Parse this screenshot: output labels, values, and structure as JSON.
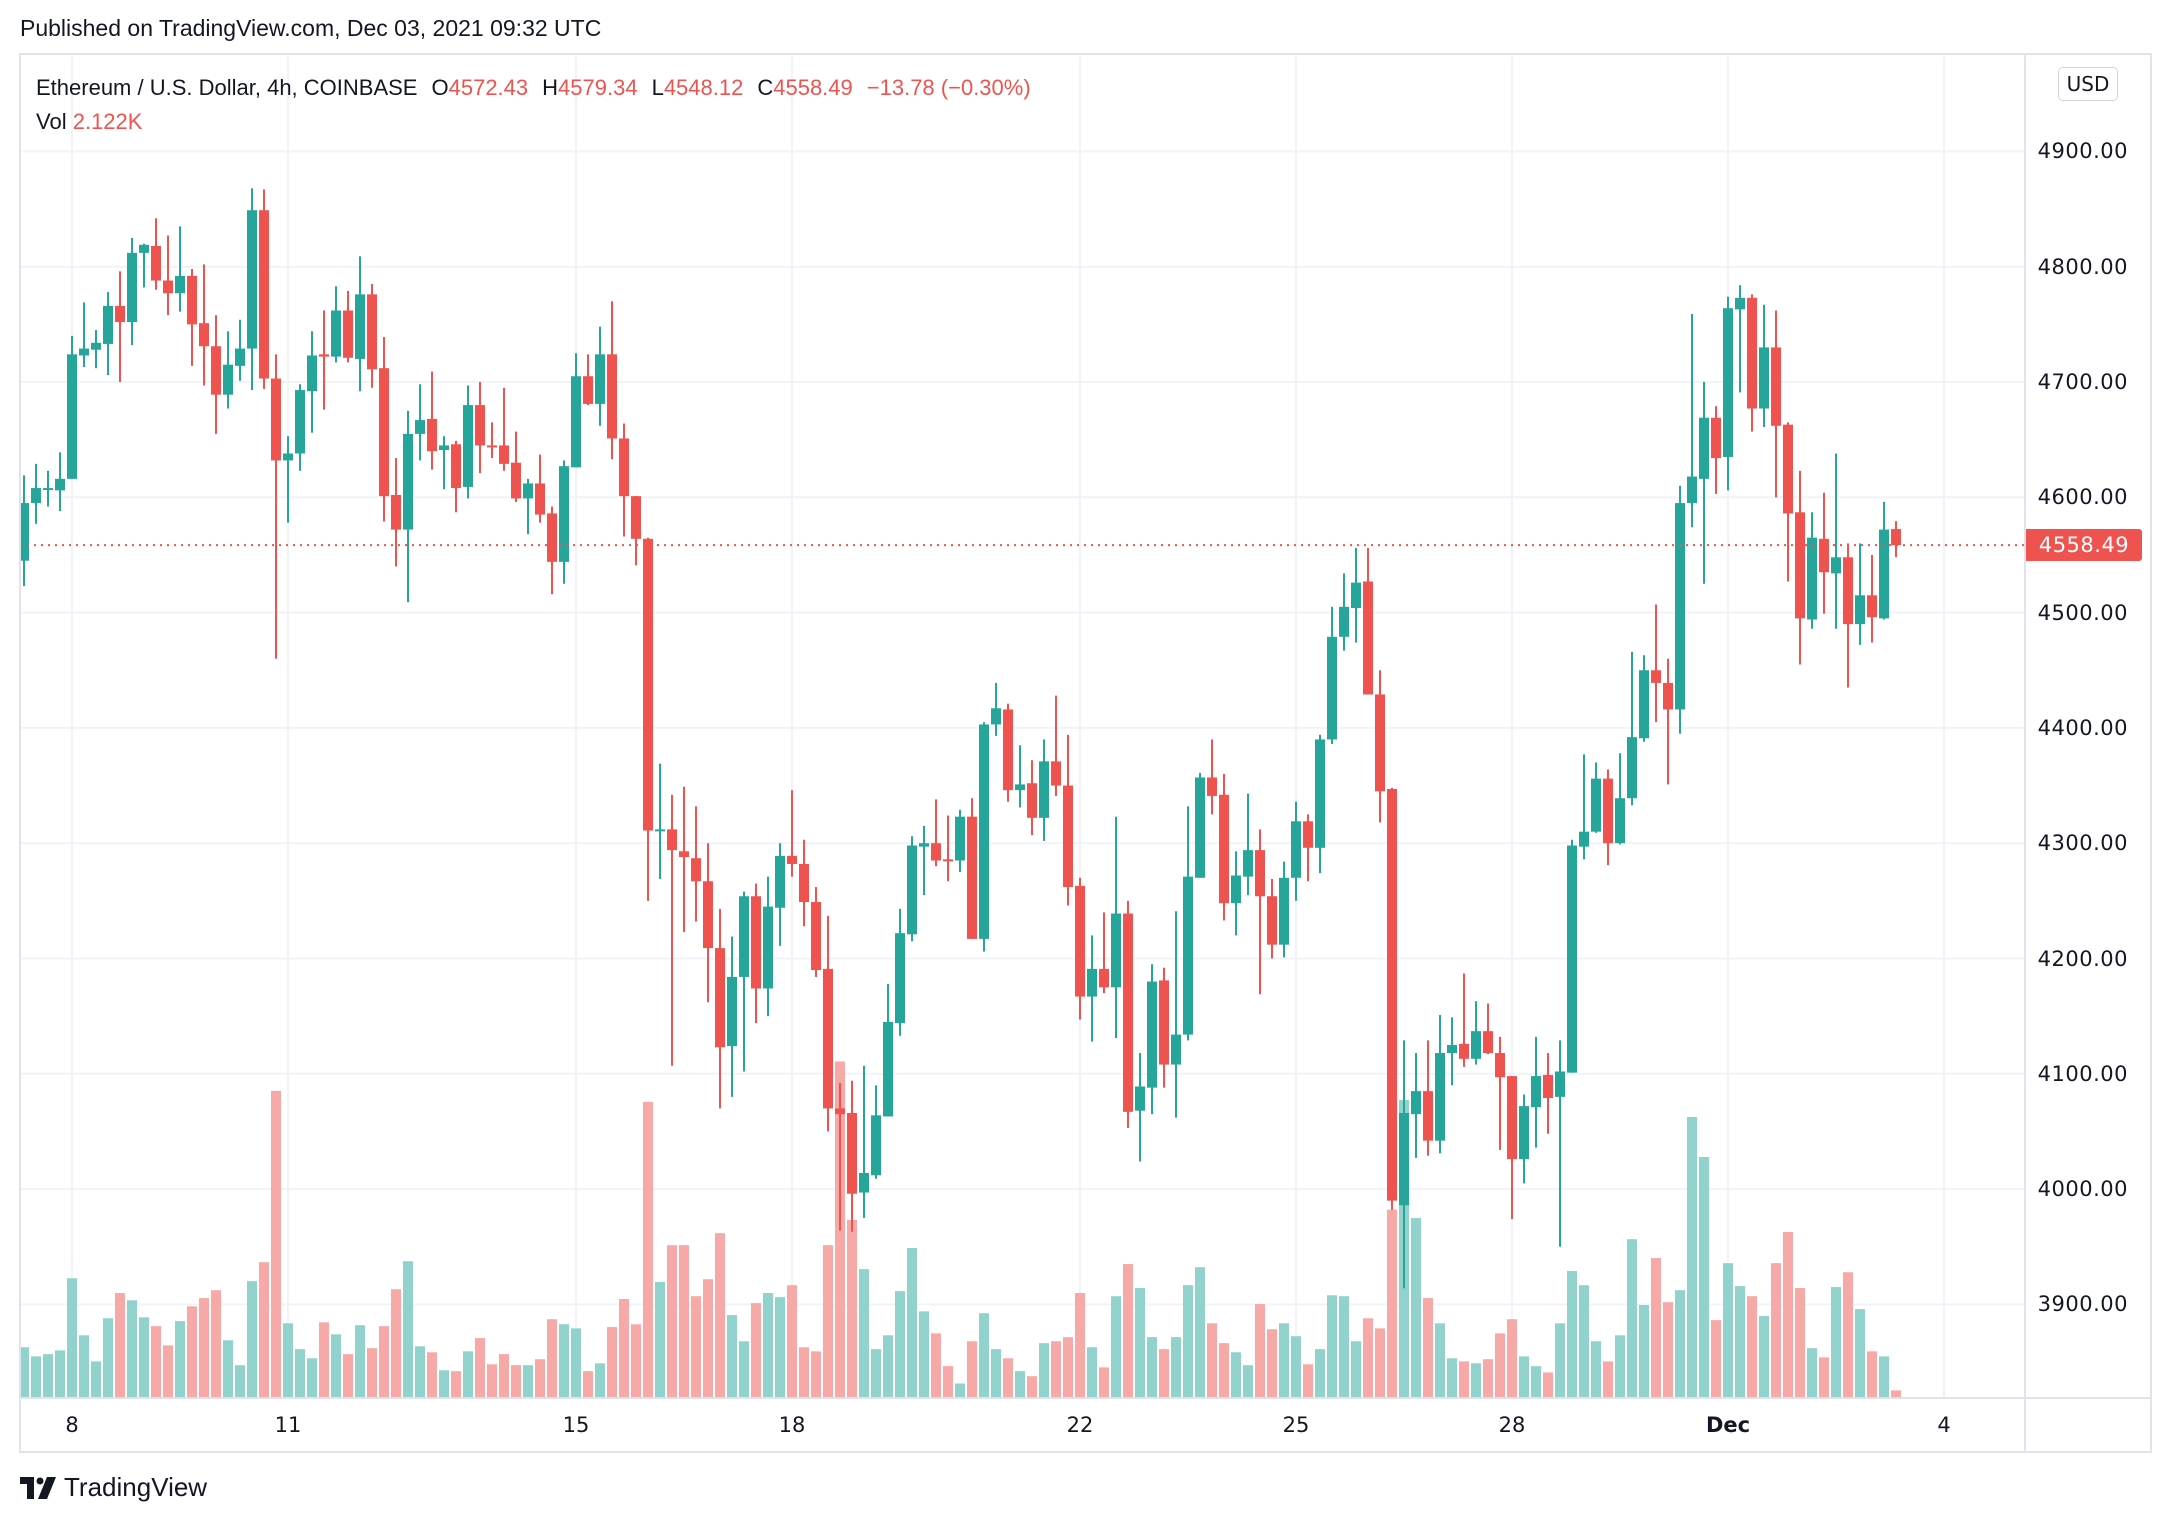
{
  "published": "Published on TradingView.com, Dec 03, 2021 09:32 UTC",
  "legend": {
    "symbol": "Ethereum / U.S. Dollar, 4h, COINBASE",
    "o_label": "O",
    "open": "4572.43",
    "h_label": "H",
    "high": "4579.34",
    "l_label": "L",
    "low": "4548.12",
    "c_label": "C",
    "close": "4558.49",
    "change": "−13.78 (−0.30%)",
    "vol_label": "Vol",
    "vol": "2.122K"
  },
  "currency_button": "USD",
  "last_price_label": "4558.49",
  "logo_text": "TradingView",
  "colors": {
    "up": "#26a69a",
    "down": "#ef5350",
    "up_volume": "#92d2cc",
    "down_volume": "#f7a9a7",
    "grid": "#f0f3fa"
  },
  "chart_data": {
    "type": "candlestick",
    "title": "Ethereum / U.S. Dollar, 4h, COINBASE",
    "interval": "4h",
    "ylim": [
      3820,
      4960
    ],
    "grid": true,
    "y_ticks": [
      "4900.00",
      "4800.00",
      "4700.00",
      "4600.00",
      "4500.00",
      "4400.00",
      "4300.00",
      "4200.00",
      "4100.00",
      "4000.00",
      "3900.00"
    ],
    "x_ticks": [
      {
        "label": "8",
        "t": "2021-11-08 00:00"
      },
      {
        "label": "11",
        "t": "2021-11-11 00:00"
      },
      {
        "label": "15",
        "t": "2021-11-15 00:00"
      },
      {
        "label": "18",
        "t": "2021-11-18 00:00"
      },
      {
        "label": "22",
        "t": "2021-11-22 00:00"
      },
      {
        "label": "25",
        "t": "2021-11-25 00:00"
      },
      {
        "label": "28",
        "t": "2021-11-28 00:00"
      },
      {
        "label": "Dec",
        "t": "2021-12-01 00:00"
      },
      {
        "label": "4",
        "t": "2021-12-04 00:00"
      }
    ],
    "last_price": 4558.49,
    "columns": [
      "time",
      "open",
      "high",
      "low",
      "close",
      "volume_k"
    ],
    "candles": [
      [
        "2021-11-07 08:00",
        4545,
        4619,
        4523,
        4595,
        15.8
      ],
      [
        "2021-11-07 12:00",
        4595,
        4629,
        4577,
        4608,
        12.9
      ],
      [
        "2021-11-07 16:00",
        4607,
        4623,
        4592,
        4608,
        13.6
      ],
      [
        "2021-11-07 20:00",
        4606,
        4639,
        4588,
        4616,
        14.8
      ],
      [
        "2021-11-08 00:00",
        4616,
        4740,
        4616,
        4724,
        37.7
      ],
      [
        "2021-11-08 04:00",
        4723,
        4769,
        4713,
        4729,
        19.6
      ],
      [
        "2021-11-08 08:00",
        4728,
        4745,
        4712,
        4734,
        11.3
      ],
      [
        "2021-11-08 12:00",
        4733,
        4778,
        4706,
        4766,
        25.0
      ],
      [
        "2021-11-08 16:00",
        4766,
        4796,
        4700,
        4752,
        33.0
      ],
      [
        "2021-11-08 20:00",
        4752,
        4825,
        4732,
        4812,
        30.7
      ],
      [
        "2021-11-09 00:00",
        4812,
        4820,
        4782,
        4819,
        25.3
      ],
      [
        "2021-11-09 04:00",
        4818,
        4842,
        4780,
        4788,
        22.5
      ],
      [
        "2021-11-09 08:00",
        4788,
        4827,
        4758,
        4777,
        16.4
      ],
      [
        "2021-11-09 12:00",
        4777,
        4835,
        4761,
        4792,
        24.1
      ],
      [
        "2021-11-09 16:00",
        4792,
        4798,
        4714,
        4750,
        28.8
      ],
      [
        "2021-11-09 20:00",
        4751,
        4802,
        4697,
        4731,
        31.4
      ],
      [
        "2021-11-10 00:00",
        4731,
        4758,
        4655,
        4689,
        33.9
      ],
      [
        "2021-11-10 04:00",
        4689,
        4744,
        4677,
        4715,
        18.0
      ],
      [
        "2021-11-10 08:00",
        4714,
        4754,
        4701,
        4729,
        10.1
      ],
      [
        "2021-11-10 12:00",
        4729,
        4868,
        4693,
        4849,
        36.8
      ],
      [
        "2021-11-10 16:00",
        4849,
        4867,
        4694,
        4703,
        42.8
      ],
      [
        "2021-11-10 20:00",
        4703,
        4724,
        4460,
        4632,
        97.2
      ],
      [
        "2021-11-11 00:00",
        4632,
        4653,
        4578,
        4638,
        23.4
      ],
      [
        "2021-11-11 04:00",
        4638,
        4698,
        4623,
        4693,
        15.2
      ],
      [
        "2021-11-11 08:00",
        4692,
        4744,
        4656,
        4723,
        12.3
      ],
      [
        "2021-11-11 12:00",
        4724,
        4762,
        4676,
        4722,
        23.7
      ],
      [
        "2021-11-11 16:00",
        4722,
        4783,
        4717,
        4762,
        19.9
      ],
      [
        "2021-11-11 20:00",
        4762,
        4779,
        4717,
        4721,
        13.6
      ],
      [
        "2021-11-12 00:00",
        4720,
        4809,
        4692,
        4776,
        22.8
      ],
      [
        "2021-11-12 04:00",
        4776,
        4785,
        4695,
        4711,
        15.5
      ],
      [
        "2021-11-12 08:00",
        4712,
        4739,
        4579,
        4601,
        22.5
      ],
      [
        "2021-11-12 12:00",
        4602,
        4634,
        4540,
        4572,
        34.2
      ],
      [
        "2021-11-12 16:00",
        4572,
        4675,
        4509,
        4655,
        43.1
      ],
      [
        "2021-11-12 20:00",
        4655,
        4698,
        4632,
        4667,
        16.1
      ],
      [
        "2021-11-13 00:00",
        4668,
        4709,
        4624,
        4640,
        14.2
      ],
      [
        "2021-11-13 04:00",
        4641,
        4653,
        4607,
        4645,
        8.5
      ],
      [
        "2021-11-13 08:00",
        4646,
        4649,
        4587,
        4608,
        8.2
      ],
      [
        "2021-11-13 12:00",
        4609,
        4697,
        4599,
        4680,
        14.5
      ],
      [
        "2021-11-13 16:00",
        4680,
        4700,
        4621,
        4645,
        18.7
      ],
      [
        "2021-11-13 20:00",
        4645,
        4665,
        4634,
        4644,
        10.4
      ],
      [
        "2021-11-14 00:00",
        4645,
        4695,
        4623,
        4629,
        13.6
      ],
      [
        "2021-11-14 04:00",
        4630,
        4657,
        4596,
        4599,
        10.1
      ],
      [
        "2021-11-14 08:00",
        4599,
        4616,
        4568,
        4612,
        10.1
      ],
      [
        "2021-11-14 12:00",
        4612,
        4637,
        4578,
        4585,
        12.0
      ],
      [
        "2021-11-14 16:00",
        4586,
        4592,
        4516,
        4544,
        24.7
      ],
      [
        "2021-11-14 20:00",
        4544,
        4632,
        4525,
        4627,
        23.1
      ],
      [
        "2021-11-15 00:00",
        4626,
        4725,
        4626,
        4705,
        21.8
      ],
      [
        "2021-11-15 04:00",
        4705,
        4724,
        4680,
        4681,
        8.2
      ],
      [
        "2021-11-15 08:00",
        4681,
        4748,
        4662,
        4724,
        10.7
      ],
      [
        "2021-11-15 12:00",
        4724,
        4770,
        4633,
        4651,
        22.2
      ],
      [
        "2021-11-15 16:00",
        4651,
        4664,
        4566,
        4601,
        31.1
      ],
      [
        "2021-11-15 20:00",
        4601,
        4601,
        4541,
        4564,
        23.1
      ],
      [
        "2021-11-16 00:00",
        4564,
        4565,
        4250,
        4311,
        93.7
      ],
      [
        "2021-11-16 04:00",
        4311,
        4369,
        4269,
        4312,
        36.5
      ],
      [
        "2021-11-16 08:00",
        4312,
        4342,
        4107,
        4294,
        48.2
      ],
      [
        "2021-11-16 12:00",
        4293,
        4349,
        4223,
        4288,
        48.2
      ],
      [
        "2021-11-16 16:00",
        4287,
        4332,
        4232,
        4267,
        32.0
      ],
      [
        "2021-11-16 20:00",
        4267,
        4300,
        4162,
        4209,
        37.4
      ],
      [
        "2021-11-17 00:00",
        4209,
        4243,
        4070,
        4123,
        52.0
      ],
      [
        "2021-11-17 04:00",
        4124,
        4219,
        4080,
        4184,
        26.0
      ],
      [
        "2021-11-17 08:00",
        4184,
        4258,
        4102,
        4254,
        17.7
      ],
      [
        "2021-11-17 12:00",
        4254,
        4265,
        4144,
        4174,
        29.8
      ],
      [
        "2021-11-17 16:00",
        4174,
        4271,
        4150,
        4245,
        33.0
      ],
      [
        "2021-11-17 20:00",
        4244,
        4300,
        4211,
        4289,
        31.7
      ],
      [
        "2021-11-18 00:00",
        4289,
        4346,
        4271,
        4282,
        35.5
      ],
      [
        "2021-11-18 04:00",
        4282,
        4303,
        4228,
        4249,
        15.8
      ],
      [
        "2021-11-18 08:00",
        4249,
        4262,
        4184,
        4190,
        14.5
      ],
      [
        "2021-11-18 12:00",
        4191,
        4237,
        4050,
        4070,
        48.2
      ],
      [
        "2021-11-18 16:00",
        4070,
        4092,
        3964,
        4065,
        106.5
      ],
      [
        "2021-11-18 20:00",
        4066,
        4094,
        3963,
        3996,
        56.2
      ],
      [
        "2021-11-19 00:00",
        3997,
        4107,
        3975,
        4014,
        40.6
      ],
      [
        "2021-11-19 04:00",
        4012,
        4090,
        4009,
        4064,
        15.2
      ],
      [
        "2021-11-19 08:00",
        4063,
        4178,
        4063,
        4145,
        19.6
      ],
      [
        "2021-11-19 12:00",
        4144,
        4243,
        4133,
        4222,
        33.6
      ],
      [
        "2021-11-19 16:00",
        4221,
        4306,
        4215,
        4298,
        47.3
      ],
      [
        "2021-11-19 20:00",
        4297,
        4315,
        4255,
        4300,
        27.2
      ],
      [
        "2021-11-20 00:00",
        4300,
        4338,
        4280,
        4285,
        20.2
      ],
      [
        "2021-11-20 04:00",
        4286,
        4324,
        4267,
        4285,
        9.8
      ],
      [
        "2021-11-20 08:00",
        4285,
        4329,
        4275,
        4323,
        4.3
      ],
      [
        "2021-11-20 12:00",
        4323,
        4339,
        4217,
        4217,
        17.7
      ],
      [
        "2021-11-20 16:00",
        4217,
        4405,
        4206,
        4403,
        26.6
      ],
      [
        "2021-11-20 20:00",
        4403,
        4439,
        4393,
        4417,
        15.2
      ],
      [
        "2021-11-21 00:00",
        4416,
        4421,
        4336,
        4346,
        12.3
      ],
      [
        "2021-11-21 04:00",
        4346,
        4385,
        4331,
        4351,
        8.2
      ],
      [
        "2021-11-21 08:00",
        4352,
        4372,
        4307,
        4322,
        6.6
      ],
      [
        "2021-11-21 12:00",
        4322,
        4390,
        4302,
        4371,
        17.1
      ],
      [
        "2021-11-21 16:00",
        4371,
        4428,
        4341,
        4350,
        17.7
      ],
      [
        "2021-11-21 20:00",
        4350,
        4394,
        4246,
        4262,
        19.0
      ],
      [
        "2021-11-22 00:00",
        4263,
        4270,
        4147,
        4167,
        33.0
      ],
      [
        "2021-11-22 04:00",
        4167,
        4220,
        4128,
        4191,
        15.8
      ],
      [
        "2021-11-22 08:00",
        4191,
        4240,
        4170,
        4175,
        9.4
      ],
      [
        "2021-11-22 12:00",
        4175,
        4323,
        4131,
        4239,
        32.0
      ],
      [
        "2021-11-22 16:00",
        4239,
        4250,
        4053,
        4067,
        42.2
      ],
      [
        "2021-11-22 20:00",
        4068,
        4118,
        4024,
        4089,
        34.6
      ],
      [
        "2021-11-23 00:00",
        4088,
        4195,
        4065,
        4180,
        19.0
      ],
      [
        "2021-11-23 04:00",
        4181,
        4192,
        4088,
        4108,
        15.2
      ],
      [
        "2021-11-23 08:00",
        4108,
        4241,
        4062,
        4134,
        19.0
      ],
      [
        "2021-11-23 12:00",
        4134,
        4332,
        4129,
        4271,
        35.5
      ],
      [
        "2021-11-23 16:00",
        4270,
        4361,
        4270,
        4357,
        41.2
      ],
      [
        "2021-11-23 20:00",
        4357,
        4390,
        4325,
        4341,
        23.4
      ],
      [
        "2021-11-24 00:00",
        4342,
        4360,
        4233,
        4248,
        17.1
      ],
      [
        "2021-11-24 04:00",
        4248,
        4293,
        4220,
        4272,
        14.2
      ],
      [
        "2021-11-24 08:00",
        4271,
        4343,
        4255,
        4294,
        10.1
      ],
      [
        "2021-11-24 12:00",
        4294,
        4312,
        4169,
        4254,
        29.5
      ],
      [
        "2021-11-24 16:00",
        4254,
        4269,
        4200,
        4212,
        21.5
      ],
      [
        "2021-11-24 20:00",
        4212,
        4284,
        4201,
        4270,
        23.4
      ],
      [
        "2021-11-25 00:00",
        4270,
        4336,
        4250,
        4319,
        19.3
      ],
      [
        "2021-11-25 04:00",
        4319,
        4325,
        4267,
        4296,
        10.4
      ],
      [
        "2021-11-25 08:00",
        4296,
        4394,
        4274,
        4390,
        15.2
      ],
      [
        "2021-11-25 12:00",
        4390,
        4505,
        4386,
        4479,
        32.3
      ],
      [
        "2021-11-25 16:00",
        4479,
        4534,
        4467,
        4505,
        32.0
      ],
      [
        "2021-11-25 20:00",
        4504,
        4556,
        4474,
        4526,
        17.7
      ],
      [
        "2021-11-26 00:00",
        4527,
        4556,
        4429,
        4429,
        25.0
      ],
      [
        "2021-11-26 04:00",
        4429,
        4450,
        4318,
        4345,
        21.8
      ],
      [
        "2021-11-26 08:00",
        4347,
        4348,
        3982,
        3990,
        59.5
      ],
      [
        "2021-11-26 12:00",
        3986,
        4129,
        3914,
        4066,
        94.3
      ],
      [
        "2021-11-26 16:00",
        4065,
        4118,
        4027,
        4085,
        56.8
      ],
      [
        "2021-11-26 20:00",
        4085,
        4129,
        4029,
        4042,
        31.4
      ],
      [
        "2021-11-27 00:00",
        4042,
        4151,
        4031,
        4118,
        23.4
      ],
      [
        "2021-11-27 04:00",
        4118,
        4149,
        4090,
        4125,
        12.3
      ],
      [
        "2021-11-27 08:00",
        4126,
        4187,
        4106,
        4113,
        11.3
      ],
      [
        "2021-11-27 12:00",
        4113,
        4163,
        4108,
        4137,
        10.7
      ],
      [
        "2021-11-27 16:00",
        4137,
        4161,
        4117,
        4118,
        12.0
      ],
      [
        "2021-11-27 20:00",
        4118,
        4132,
        4034,
        4097,
        20.2
      ],
      [
        "2021-11-28 00:00",
        4098,
        4098,
        3974,
        4026,
        24.7
      ],
      [
        "2021-11-28 04:00",
        4026,
        4082,
        4005,
        4072,
        12.9
      ],
      [
        "2021-11-28 08:00",
        4071,
        4132,
        4036,
        4098,
        9.8
      ],
      [
        "2021-11-28 12:00",
        4099,
        4118,
        4048,
        4079,
        7.8
      ],
      [
        "2021-11-28 16:00",
        4080,
        4129,
        3950,
        4102,
        23.4
      ],
      [
        "2021-11-28 20:00",
        4101,
        4303,
        4101,
        4298,
        40.0
      ],
      [
        "2021-11-29 00:00",
        4297,
        4377,
        4286,
        4310,
        35.5
      ],
      [
        "2021-11-29 04:00",
        4310,
        4370,
        4309,
        4356,
        17.7
      ],
      [
        "2021-11-29 08:00",
        4356,
        4364,
        4281,
        4300,
        11.3
      ],
      [
        "2021-11-29 12:00",
        4300,
        4378,
        4299,
        4339,
        19.6
      ],
      [
        "2021-11-29 16:00",
        4339,
        4466,
        4333,
        4392,
        50.1
      ],
      [
        "2021-11-29 20:00",
        4391,
        4463,
        4388,
        4450,
        29.2
      ],
      [
        "2021-11-30 00:00",
        4450,
        4507,
        4405,
        4439,
        44.1
      ],
      [
        "2021-11-30 04:00",
        4439,
        4460,
        4351,
        4416,
        30.1
      ],
      [
        "2021-11-30 08:00",
        4416,
        4610,
        4395,
        4595,
        33.9
      ],
      [
        "2021-11-30 12:00",
        4595,
        4759,
        4574,
        4618,
        88.9
      ],
      [
        "2021-11-30 16:00",
        4616,
        4700,
        4525,
        4669,
        76.2
      ],
      [
        "2021-11-30 20:00",
        4669,
        4679,
        4603,
        4634,
        24.4
      ],
      [
        "2021-12-01 00:00",
        4635,
        4774,
        4606,
        4764,
        42.5
      ],
      [
        "2021-12-01 04:00",
        4763,
        4784,
        4691,
        4773,
        35.2
      ],
      [
        "2021-12-01 08:00",
        4773,
        4776,
        4657,
        4677,
        32.0
      ],
      [
        "2021-12-01 12:00",
        4677,
        4767,
        4661,
        4730,
        25.7
      ],
      [
        "2021-12-01 16:00",
        4730,
        4762,
        4600,
        4662,
        42.5
      ],
      [
        "2021-12-01 20:00",
        4663,
        4665,
        4527,
        4586,
        52.4
      ],
      [
        "2021-12-02 00:00",
        4587,
        4623,
        4455,
        4495,
        34.6
      ],
      [
        "2021-12-02 04:00",
        4494,
        4587,
        4486,
        4565,
        15.5
      ],
      [
        "2021-12-02 08:00",
        4564,
        4604,
        4499,
        4535,
        12.6
      ],
      [
        "2021-12-02 12:00",
        4534,
        4638,
        4486,
        4548,
        34.9
      ],
      [
        "2021-12-02 16:00",
        4548,
        4560,
        4435,
        4490,
        39.6
      ],
      [
        "2021-12-02 20:00",
        4490,
        4560,
        4472,
        4515,
        27.9
      ],
      [
        "2021-12-03 00:00",
        4515,
        4550,
        4474,
        4496,
        14.5
      ],
      [
        "2021-12-03 04:00",
        4495,
        4596,
        4494,
        4572,
        12.9
      ],
      [
        "2021-12-03 08:00",
        4572.43,
        4579.34,
        4548.12,
        4558.49,
        2.122
      ]
    ]
  }
}
